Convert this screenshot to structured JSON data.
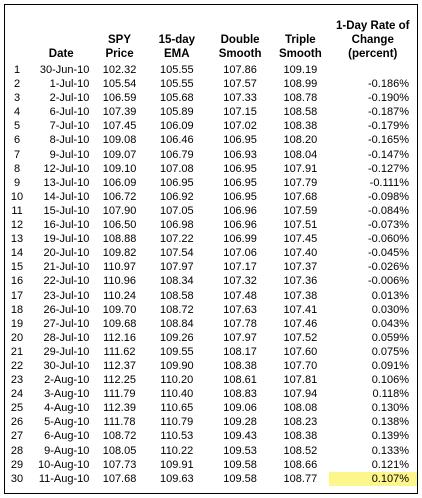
{
  "headers": {
    "n": "",
    "date": "Date",
    "spy": "SPY Price",
    "ema": "15-day EMA",
    "dbl": "Double Smooth",
    "tri": "Triple Smooth",
    "roc": "1-Day Rate of Change (percent)"
  },
  "highlight_color": "#fdf68a",
  "rows": [
    {
      "n": "1",
      "date": "30-Jun-10",
      "spy": "102.32",
      "ema": "105.55",
      "dbl": "107.86",
      "tri": "109.19",
      "roc": ""
    },
    {
      "n": "2",
      "date": "1-Jul-10",
      "spy": "105.54",
      "ema": "105.55",
      "dbl": "107.57",
      "tri": "108.99",
      "roc": "-0.186%"
    },
    {
      "n": "3",
      "date": "2-Jul-10",
      "spy": "106.59",
      "ema": "105.68",
      "dbl": "107.33",
      "tri": "108.78",
      "roc": "-0.190%"
    },
    {
      "n": "4",
      "date": "6-Jul-10",
      "spy": "107.39",
      "ema": "105.89",
      "dbl": "107.15",
      "tri": "108.58",
      "roc": "-0.187%"
    },
    {
      "n": "5",
      "date": "7-Jul-10",
      "spy": "107.45",
      "ema": "106.09",
      "dbl": "107.02",
      "tri": "108.38",
      "roc": "-0.179%"
    },
    {
      "n": "6",
      "date": "8-Jul-10",
      "spy": "109.08",
      "ema": "106.46",
      "dbl": "106.95",
      "tri": "108.20",
      "roc": "-0.165%"
    },
    {
      "n": "7",
      "date": "9-Jul-10",
      "spy": "109.07",
      "ema": "106.79",
      "dbl": "106.93",
      "tri": "108.04",
      "roc": "-0.147%"
    },
    {
      "n": "8",
      "date": "12-Jul-10",
      "spy": "109.10",
      "ema": "107.08",
      "dbl": "106.95",
      "tri": "107.91",
      "roc": "-0.127%"
    },
    {
      "n": "9",
      "date": "13-Jul-10",
      "spy": "106.09",
      "ema": "106.95",
      "dbl": "106.95",
      "tri": "107.79",
      "roc": "-0.111%"
    },
    {
      "n": "10",
      "date": "14-Jul-10",
      "spy": "106.72",
      "ema": "106.92",
      "dbl": "106.95",
      "tri": "107.68",
      "roc": "-0.098%"
    },
    {
      "n": "11",
      "date": "15-Jul-10",
      "spy": "107.90",
      "ema": "107.05",
      "dbl": "106.96",
      "tri": "107.59",
      "roc": "-0.084%"
    },
    {
      "n": "12",
      "date": "16-Jul-10",
      "spy": "106.50",
      "ema": "106.98",
      "dbl": "106.96",
      "tri": "107.51",
      "roc": "-0.073%"
    },
    {
      "n": "13",
      "date": "19-Jul-10",
      "spy": "108.88",
      "ema": "107.22",
      "dbl": "106.99",
      "tri": "107.45",
      "roc": "-0.060%"
    },
    {
      "n": "14",
      "date": "20-Jul-10",
      "spy": "109.82",
      "ema": "107.54",
      "dbl": "107.06",
      "tri": "107.40",
      "roc": "-0.045%"
    },
    {
      "n": "15",
      "date": "21-Jul-10",
      "spy": "110.97",
      "ema": "107.97",
      "dbl": "107.17",
      "tri": "107.37",
      "roc": "-0.026%"
    },
    {
      "n": "16",
      "date": "22-Jul-10",
      "spy": "110.96",
      "ema": "108.34",
      "dbl": "107.32",
      "tri": "107.36",
      "roc": "-0.006%"
    },
    {
      "n": "17",
      "date": "23-Jul-10",
      "spy": "110.24",
      "ema": "108.58",
      "dbl": "107.48",
      "tri": "107.38",
      "roc": "0.013%"
    },
    {
      "n": "18",
      "date": "26-Jul-10",
      "spy": "109.70",
      "ema": "108.72",
      "dbl": "107.63",
      "tri": "107.41",
      "roc": "0.030%"
    },
    {
      "n": "19",
      "date": "27-Jul-10",
      "spy": "109.68",
      "ema": "108.84",
      "dbl": "107.78",
      "tri": "107.46",
      "roc": "0.043%"
    },
    {
      "n": "20",
      "date": "28-Jul-10",
      "spy": "112.16",
      "ema": "109.26",
      "dbl": "107.97",
      "tri": "107.52",
      "roc": "0.059%"
    },
    {
      "n": "21",
      "date": "29-Jul-10",
      "spy": "111.62",
      "ema": "109.55",
      "dbl": "108.17",
      "tri": "107.60",
      "roc": "0.075%"
    },
    {
      "n": "22",
      "date": "30-Jul-10",
      "spy": "112.37",
      "ema": "109.90",
      "dbl": "108.38",
      "tri": "107.70",
      "roc": "0.091%"
    },
    {
      "n": "23",
      "date": "2-Aug-10",
      "spy": "112.25",
      "ema": "110.20",
      "dbl": "108.61",
      "tri": "107.81",
      "roc": "0.106%"
    },
    {
      "n": "24",
      "date": "3-Aug-10",
      "spy": "111.79",
      "ema": "110.40",
      "dbl": "108.83",
      "tri": "107.94",
      "roc": "0.118%"
    },
    {
      "n": "25",
      "date": "4-Aug-10",
      "spy": "112.39",
      "ema": "110.65",
      "dbl": "109.06",
      "tri": "108.08",
      "roc": "0.130%"
    },
    {
      "n": "26",
      "date": "5-Aug-10",
      "spy": "111.78",
      "ema": "110.79",
      "dbl": "109.28",
      "tri": "108.23",
      "roc": "0.138%"
    },
    {
      "n": "27",
      "date": "6-Aug-10",
      "spy": "108.72",
      "ema": "110.53",
      "dbl": "109.43",
      "tri": "108.38",
      "roc": "0.139%"
    },
    {
      "n": "28",
      "date": "9-Aug-10",
      "spy": "108.05",
      "ema": "110.22",
      "dbl": "109.53",
      "tri": "108.52",
      "roc": "0.133%"
    },
    {
      "n": "29",
      "date": "10-Aug-10",
      "spy": "107.73",
      "ema": "109.91",
      "dbl": "109.58",
      "tri": "108.66",
      "roc": "0.121%"
    },
    {
      "n": "30",
      "date": "11-Aug-10",
      "spy": "107.68",
      "ema": "109.63",
      "dbl": "109.58",
      "tri": "108.77",
      "roc": "0.107%",
      "highlight": true
    }
  ]
}
